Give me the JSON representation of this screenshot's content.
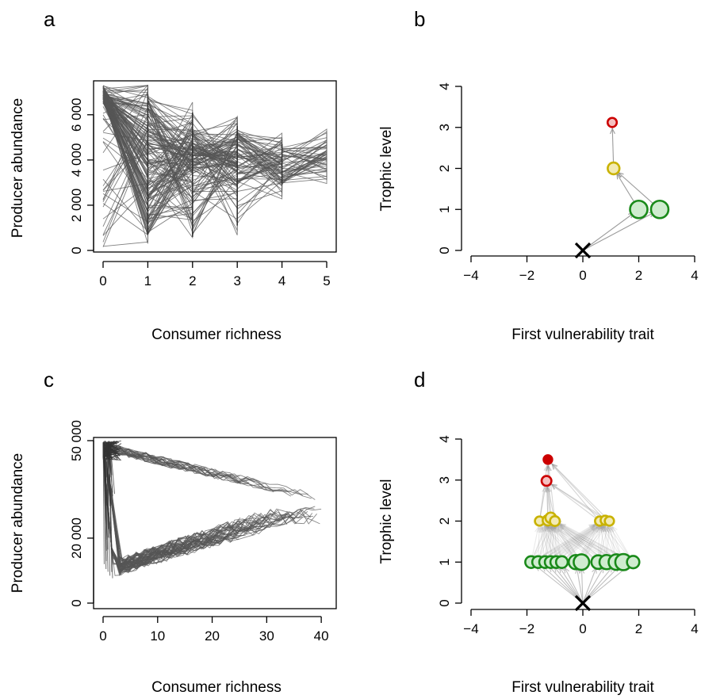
{
  "chart_data": [
    {
      "panel": "a",
      "type": "line",
      "xlabel": "Consumer richness",
      "ylabel": "Producer abundance",
      "xticks": [
        "0",
        "1",
        "2",
        "3",
        "4",
        "5"
      ],
      "yticks": [
        "0",
        "2 000",
        "4 000",
        "6 000"
      ],
      "xlim": [
        0,
        5
      ],
      "ylim": [
        0,
        7500
      ],
      "box": true,
      "line_color": "#555555",
      "description_series": "trajectories of producer abundance vs consumer richness during community assembly",
      "bands": [
        {
          "x": 0,
          "range": [
            100,
            7300
          ]
        },
        {
          "x": 1,
          "range": [
            700,
            6900
          ]
        },
        {
          "x": 2,
          "range": [
            600,
            6100
          ]
        },
        {
          "x": 3,
          "range": [
            1100,
            5500
          ]
        },
        {
          "x": 4,
          "range": [
            2900,
            4700
          ]
        },
        {
          "x": 5,
          "range": [
            3500,
            4800
          ]
        }
      ]
    },
    {
      "panel": "b",
      "type": "scatter",
      "xlabel": "First vulnerability trait",
      "ylabel": "Trophic level",
      "xticks": [
        "−4",
        "−2",
        "0",
        "2",
        "4"
      ],
      "yticks": [
        "0",
        "1",
        "2",
        "3",
        "4"
      ],
      "xlim": [
        -4,
        4
      ],
      "ylim": [
        0,
        4
      ],
      "box": false,
      "resource": {
        "x": 0,
        "y": 0,
        "marker": "x"
      },
      "nodes": [
        {
          "x": 2.0,
          "y": 1.0,
          "size": 1.0,
          "color": "#1a8a1a",
          "fill": "#cfeccf"
        },
        {
          "x": 2.75,
          "y": 1.0,
          "size": 1.0,
          "color": "#1a8a1a",
          "fill": "#cfeccf"
        },
        {
          "x": 1.1,
          "y": 2.0,
          "size": 0.55,
          "color": "#c9b200",
          "fill": "#f3ebb5"
        },
        {
          "x": 1.05,
          "y": 3.12,
          "size": 0.35,
          "color": "#cc0000",
          "fill": "#f5c0c0"
        }
      ],
      "links": [
        {
          "from": [
            0,
            0
          ],
          "to": [
            2.0,
            1.0
          ]
        },
        {
          "from": [
            0,
            0
          ],
          "to": [
            2.75,
            1.0
          ]
        },
        {
          "from": [
            2.0,
            1.0
          ],
          "to": [
            1.1,
            2.0
          ]
        },
        {
          "from": [
            2.75,
            1.0
          ],
          "to": [
            1.1,
            2.0
          ]
        },
        {
          "from": [
            1.1,
            2.0
          ],
          "to": [
            1.05,
            3.12
          ]
        }
      ]
    },
    {
      "panel": "c",
      "type": "line",
      "xlabel": "Consumer richness",
      "ylabel": "Producer abundance",
      "xticks": [
        "0",
        "10",
        "20",
        "30",
        "40"
      ],
      "yticks": [
        "0",
        "20 000",
        "50 000"
      ],
      "ytick_values": [
        0,
        20000,
        50000
      ],
      "xlim": [
        0,
        41
      ],
      "ylim": [
        0,
        50000
      ],
      "box": true,
      "line_color": "#555555",
      "description_series": "trajectories of producer abundance vs consumer richness during community assembly"
    },
    {
      "panel": "d",
      "type": "scatter",
      "xlabel": "First vulnerability trait",
      "ylabel": "Trophic level",
      "xticks": [
        "−4",
        "−2",
        "0",
        "2",
        "4"
      ],
      "yticks": [
        "0",
        "1",
        "2",
        "3",
        "4"
      ],
      "xlim": [
        -4,
        4
      ],
      "ylim": [
        0,
        4
      ],
      "box": false,
      "resource": {
        "x": 0,
        "y": 0,
        "marker": "x"
      },
      "nodes": [
        {
          "x": -1.85,
          "y": 1.0,
          "size": 0.55,
          "color": "#1a8a1a",
          "fill": "#cfeccf"
        },
        {
          "x": -1.6,
          "y": 1.0,
          "size": 0.55,
          "color": "#1a8a1a",
          "fill": "#cfeccf"
        },
        {
          "x": -1.35,
          "y": 1.0,
          "size": 0.55,
          "color": "#1a8a1a",
          "fill": "#cfeccf"
        },
        {
          "x": -1.15,
          "y": 1.0,
          "size": 0.55,
          "color": "#1a8a1a",
          "fill": "#cfeccf"
        },
        {
          "x": -0.95,
          "y": 1.0,
          "size": 0.55,
          "color": "#1a8a1a",
          "fill": "#cfeccf"
        },
        {
          "x": -0.75,
          "y": 1.0,
          "size": 0.55,
          "color": "#1a8a1a",
          "fill": "#cfeccf"
        },
        {
          "x": -0.25,
          "y": 1.0,
          "size": 0.75,
          "color": "#1a8a1a",
          "fill": "#cfeccf"
        },
        {
          "x": -0.05,
          "y": 1.0,
          "size": 0.85,
          "color": "#1a8a1a",
          "fill": "#cfeccf"
        },
        {
          "x": 0.55,
          "y": 1.0,
          "size": 0.7,
          "color": "#1a8a1a",
          "fill": "#cfeccf"
        },
        {
          "x": 0.85,
          "y": 1.0,
          "size": 0.75,
          "color": "#1a8a1a",
          "fill": "#cfeccf"
        },
        {
          "x": 1.2,
          "y": 1.0,
          "size": 0.85,
          "color": "#1a8a1a",
          "fill": "#cfeccf"
        },
        {
          "x": 1.45,
          "y": 1.0,
          "size": 0.9,
          "color": "#1a8a1a",
          "fill": "#cfeccf"
        },
        {
          "x": 1.8,
          "y": 1.0,
          "size": 0.6,
          "color": "#1a8a1a",
          "fill": "#cfeccf"
        },
        {
          "x": -1.55,
          "y": 2.0,
          "size": 0.35,
          "color": "#c9b200",
          "fill": "#f3ebb5"
        },
        {
          "x": -1.25,
          "y": 2.02,
          "size": 0.45,
          "color": "#c9b200",
          "fill": "#f3ebb5"
        },
        {
          "x": -1.15,
          "y": 2.08,
          "size": 0.45,
          "color": "#c9b200",
          "fill": "#f3ebb5"
        },
        {
          "x": -1.0,
          "y": 2.0,
          "size": 0.4,
          "color": "#c9b200",
          "fill": "#f3ebb5"
        },
        {
          "x": 0.6,
          "y": 2.0,
          "size": 0.35,
          "color": "#c9b200",
          "fill": "#f3ebb5"
        },
        {
          "x": 0.8,
          "y": 2.02,
          "size": 0.35,
          "color": "#c9b200",
          "fill": "#f3ebb5"
        },
        {
          "x": 0.95,
          "y": 2.0,
          "size": 0.35,
          "color": "#c9b200",
          "fill": "#f3ebb5"
        },
        {
          "x": -1.3,
          "y": 2.98,
          "size": 0.4,
          "color": "#cc0000",
          "fill": "#f5c0c0"
        },
        {
          "x": -1.25,
          "y": 3.5,
          "size": 0.3,
          "color": "#cc0000",
          "fill": "#cc0000"
        }
      ]
    }
  ],
  "panel_labels": [
    "a",
    "b",
    "c",
    "d"
  ]
}
